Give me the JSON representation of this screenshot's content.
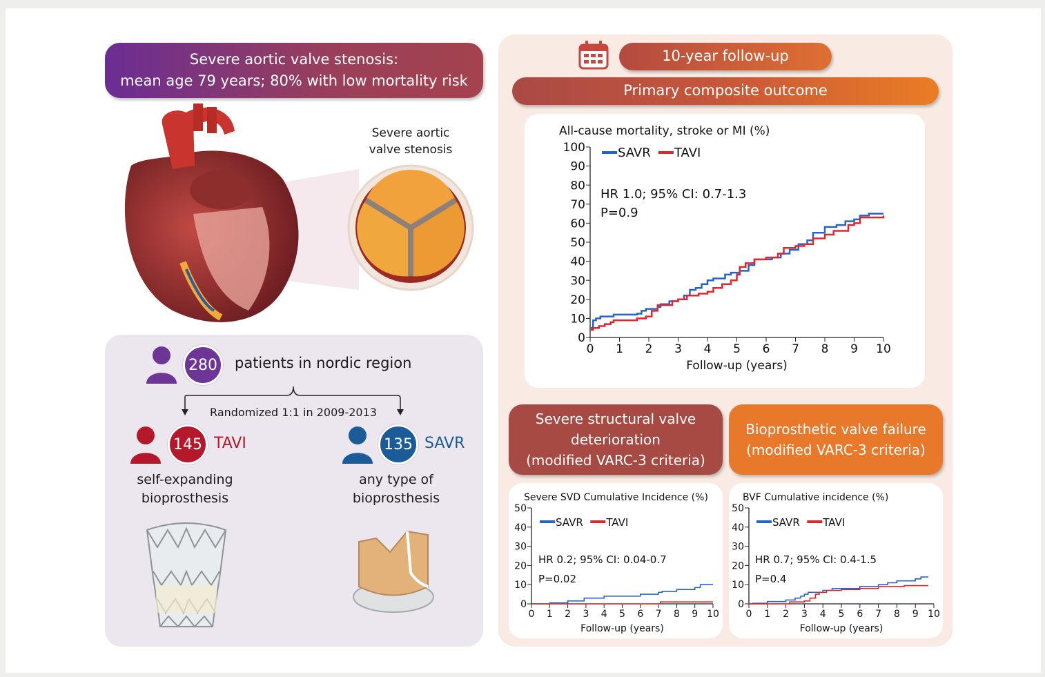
{
  "header": {
    "line1": "Severe aortic valve stenosis:",
    "line2": "mean age 79 years; 80% with low mortality risk"
  },
  "heart": {
    "label_line1": "Severe aortic",
    "label_line2": "valve stenosis"
  },
  "population": {
    "count": "280",
    "text": "patients in nordic region",
    "randomized": "Randomized 1:1 in 2009-2013"
  },
  "arms": [
    {
      "count": "145",
      "name": "TAVI",
      "desc_line1": "self-expanding",
      "desc_line2": "bioprosthesis",
      "color": "#b3182b"
    },
    {
      "count": "135",
      "name": "SAVR",
      "desc_line1": "any type of",
      "desc_line2": "bioprosthesis",
      "color": "#1b5c98"
    }
  ],
  "followup": {
    "label": "10-year follow-up",
    "icon": "calendar-icon"
  },
  "primary": {
    "label": "Primary composite outcome"
  },
  "secondary": {
    "svd_line1": "Severe structural valve",
    "svd_line2": "deterioration",
    "svd_line3": "(modified VARC-3 criteria)",
    "bvf_line1": "Bioprosthetic valve failure",
    "bvf_line2": "(modified VARC-3 criteria)"
  },
  "colors": {
    "savr": "#2563c9",
    "tavi": "#e0262a"
  },
  "chart_data": [
    {
      "id": "main",
      "type": "line",
      "title": "All-cause mortality, stroke or MI (%)",
      "xlabel": "Follow-up (years)",
      "ylabel": "",
      "xlim": [
        0,
        10
      ],
      "ylim": [
        0,
        100
      ],
      "xticks": [
        0,
        1,
        2,
        3,
        4,
        5,
        6,
        7,
        8,
        9,
        10
      ],
      "yticks": [
        0,
        10,
        20,
        30,
        40,
        50,
        60,
        70,
        80,
        90,
        100
      ],
      "annotation": [
        "HR 1.0; 95% CI: 0.7-1.3",
        "P=0.9"
      ],
      "legend": "top-left",
      "series": [
        {
          "name": "SAVR",
          "points": [
            [
              0,
              5
            ],
            [
              0.1,
              9
            ],
            [
              0.2,
              10
            ],
            [
              0.35,
              11
            ],
            [
              0.8,
              12
            ],
            [
              1.6,
              12.5
            ],
            [
              1.75,
              14
            ],
            [
              1.9,
              15
            ],
            [
              2.3,
              16
            ],
            [
              2.4,
              17.5
            ],
            [
              2.7,
              19
            ],
            [
              3,
              20
            ],
            [
              3.2,
              22
            ],
            [
              3.4,
              25
            ],
            [
              3.6,
              26
            ],
            [
              3.8,
              28
            ],
            [
              4,
              30
            ],
            [
              4.2,
              31
            ],
            [
              4.6,
              33
            ],
            [
              4.8,
              34
            ],
            [
              5.1,
              35
            ],
            [
              5.4,
              38
            ],
            [
              5.6,
              41
            ],
            [
              6.2,
              42
            ],
            [
              6.5,
              44
            ],
            [
              6.8,
              46
            ],
            [
              7.1,
              49
            ],
            [
              7.4,
              51
            ],
            [
              7.6,
              55
            ],
            [
              8,
              58
            ],
            [
              8.4,
              59
            ],
            [
              8.7,
              61
            ],
            [
              9,
              62
            ],
            [
              9.2,
              64
            ],
            [
              9.5,
              65
            ],
            [
              10,
              65
            ]
          ]
        },
        {
          "name": "TAVI",
          "points": [
            [
              0,
              4
            ],
            [
              0.1,
              5
            ],
            [
              0.3,
              6
            ],
            [
              0.5,
              7
            ],
            [
              0.7,
              8
            ],
            [
              0.8,
              9
            ],
            [
              1.4,
              9
            ],
            [
              1.6,
              10
            ],
            [
              1.9,
              11
            ],
            [
              2.1,
              14
            ],
            [
              2.3,
              17
            ],
            [
              2.8,
              19
            ],
            [
              3,
              20
            ],
            [
              3.3,
              22
            ],
            [
              3.7,
              23
            ],
            [
              4,
              24
            ],
            [
              4.2,
              26
            ],
            [
              4.5,
              28
            ],
            [
              4.8,
              30
            ],
            [
              5,
              33
            ],
            [
              5.1,
              37
            ],
            [
              5.3,
              39
            ],
            [
              5.6,
              41
            ],
            [
              6,
              42
            ],
            [
              6.4,
              44
            ],
            [
              6.6,
              47
            ],
            [
              7,
              48
            ],
            [
              7.3,
              49
            ],
            [
              7.6,
              52
            ],
            [
              8,
              54
            ],
            [
              8.3,
              56
            ],
            [
              8.8,
              59
            ],
            [
              9,
              60
            ],
            [
              9.2,
              63
            ],
            [
              10,
              64
            ]
          ]
        }
      ]
    },
    {
      "id": "svd",
      "type": "line",
      "title": "Severe SVD Cumulative Incidence (%)",
      "xlabel": "Follow-up (years)",
      "ylabel": "",
      "xlim": [
        0,
        10
      ],
      "ylim": [
        0,
        50
      ],
      "xticks": [
        0,
        1,
        2,
        3,
        4,
        5,
        6,
        7,
        8,
        9,
        10
      ],
      "yticks": [
        0,
        10,
        20,
        30,
        40,
        50
      ],
      "annotation": [
        "HR 0.2; 95% CI: 0.04-0.7",
        "P=0.02"
      ],
      "legend": "top-left",
      "series": [
        {
          "name": "SAVR",
          "points": [
            [
              0,
              0
            ],
            [
              1,
              0.5
            ],
            [
              2,
              1.5
            ],
            [
              2.9,
              3
            ],
            [
              4,
              4
            ],
            [
              6,
              5
            ],
            [
              7,
              6
            ],
            [
              7.2,
              6.5
            ],
            [
              8,
              7.5
            ],
            [
              9,
              8.5
            ],
            [
              9.3,
              10
            ],
            [
              10,
              10
            ]
          ]
        },
        {
          "name": "TAVI",
          "points": [
            [
              0,
              0
            ],
            [
              7,
              0
            ],
            [
              7.1,
              1
            ],
            [
              10,
              1
            ]
          ]
        }
      ]
    },
    {
      "id": "bvf",
      "type": "line",
      "title": "BVF Cumulative incidence (%)",
      "xlabel": "Follow-up (years)",
      "ylabel": "",
      "xlim": [
        0,
        10
      ],
      "ylim": [
        0,
        50
      ],
      "xticks": [
        0,
        1,
        2,
        3,
        4,
        5,
        6,
        7,
        8,
        9,
        10
      ],
      "yticks": [
        0,
        10,
        20,
        30,
        40,
        50
      ],
      "annotation": [
        "HR 0.7; 95% CI: 0.4-1.5",
        "P=0.4"
      ],
      "legend": "top-left",
      "series": [
        {
          "name": "SAVR",
          "points": [
            [
              0,
              0
            ],
            [
              0.2,
              0.3
            ],
            [
              1,
              1.2
            ],
            [
              2,
              2
            ],
            [
              2.5,
              3
            ],
            [
              2.8,
              4
            ],
            [
              3,
              5
            ],
            [
              3.2,
              6
            ],
            [
              4,
              7
            ],
            [
              4.5,
              8
            ],
            [
              6,
              9
            ],
            [
              7,
              10
            ],
            [
              7.5,
              11
            ],
            [
              8,
              12
            ],
            [
              9,
              13
            ],
            [
              9.3,
              14
            ],
            [
              9.7,
              14
            ]
          ]
        },
        {
          "name": "TAVI",
          "points": [
            [
              0,
              0
            ],
            [
              2,
              0
            ],
            [
              2.2,
              1
            ],
            [
              3,
              1.5
            ],
            [
              3.3,
              3
            ],
            [
              3.6,
              5
            ],
            [
              3.8,
              6
            ],
            [
              4.2,
              7
            ],
            [
              5,
              7.5
            ],
            [
              6,
              8
            ],
            [
              7,
              9
            ],
            [
              8.4,
              9.5
            ],
            [
              9.7,
              9.5
            ]
          ]
        }
      ]
    }
  ]
}
